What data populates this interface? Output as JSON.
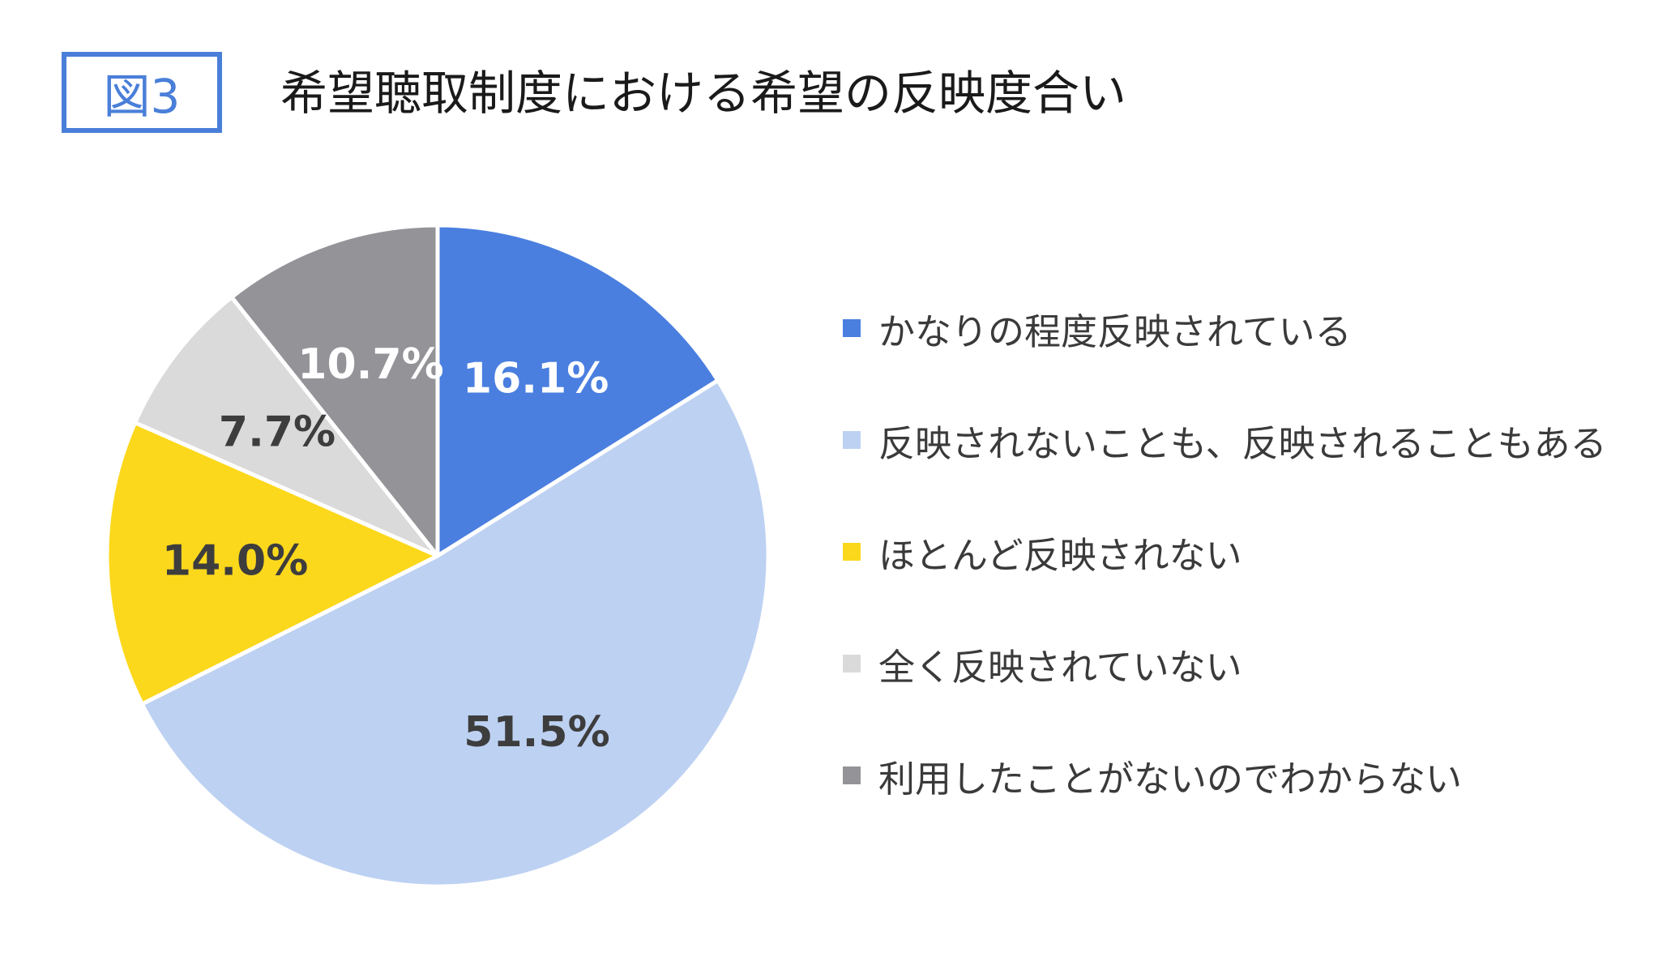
{
  "figure_label": "図3",
  "title": "希望聴取制度における希望の反映度合い",
  "colors": {
    "accent": "#4a7fd9",
    "slice_separator": "#ffffff"
  },
  "chart_data": {
    "type": "pie",
    "title": "希望聴取制度における希望の反映度合い",
    "unit": "%",
    "start": "12 o'clock",
    "direction": "clockwise",
    "legend_position": "right",
    "slices": [
      {
        "label": "かなりの程度反映されている",
        "value": 16.1,
        "display": "16.1%",
        "color": "#4a7fe0",
        "label_color": "#ffffff"
      },
      {
        "label": "反映されないことも、反映されることもある",
        "value": 51.5,
        "display": "51.5%",
        "color": "#bdd1f2",
        "label_color": "#3d3d3d"
      },
      {
        "label": "ほとんど反映されない",
        "value": 14.0,
        "display": "14.0%",
        "color": "#fcd81c",
        "label_color": "#3d3d3d"
      },
      {
        "label": "全く反映されていない",
        "value": 7.7,
        "display": "7.7%",
        "color": "#dadada",
        "label_color": "#3d3d3d"
      },
      {
        "label": "利用したことがないのでわからない",
        "value": 10.7,
        "display": "10.7%",
        "color": "#939398",
        "label_color": "#ffffff"
      }
    ]
  }
}
